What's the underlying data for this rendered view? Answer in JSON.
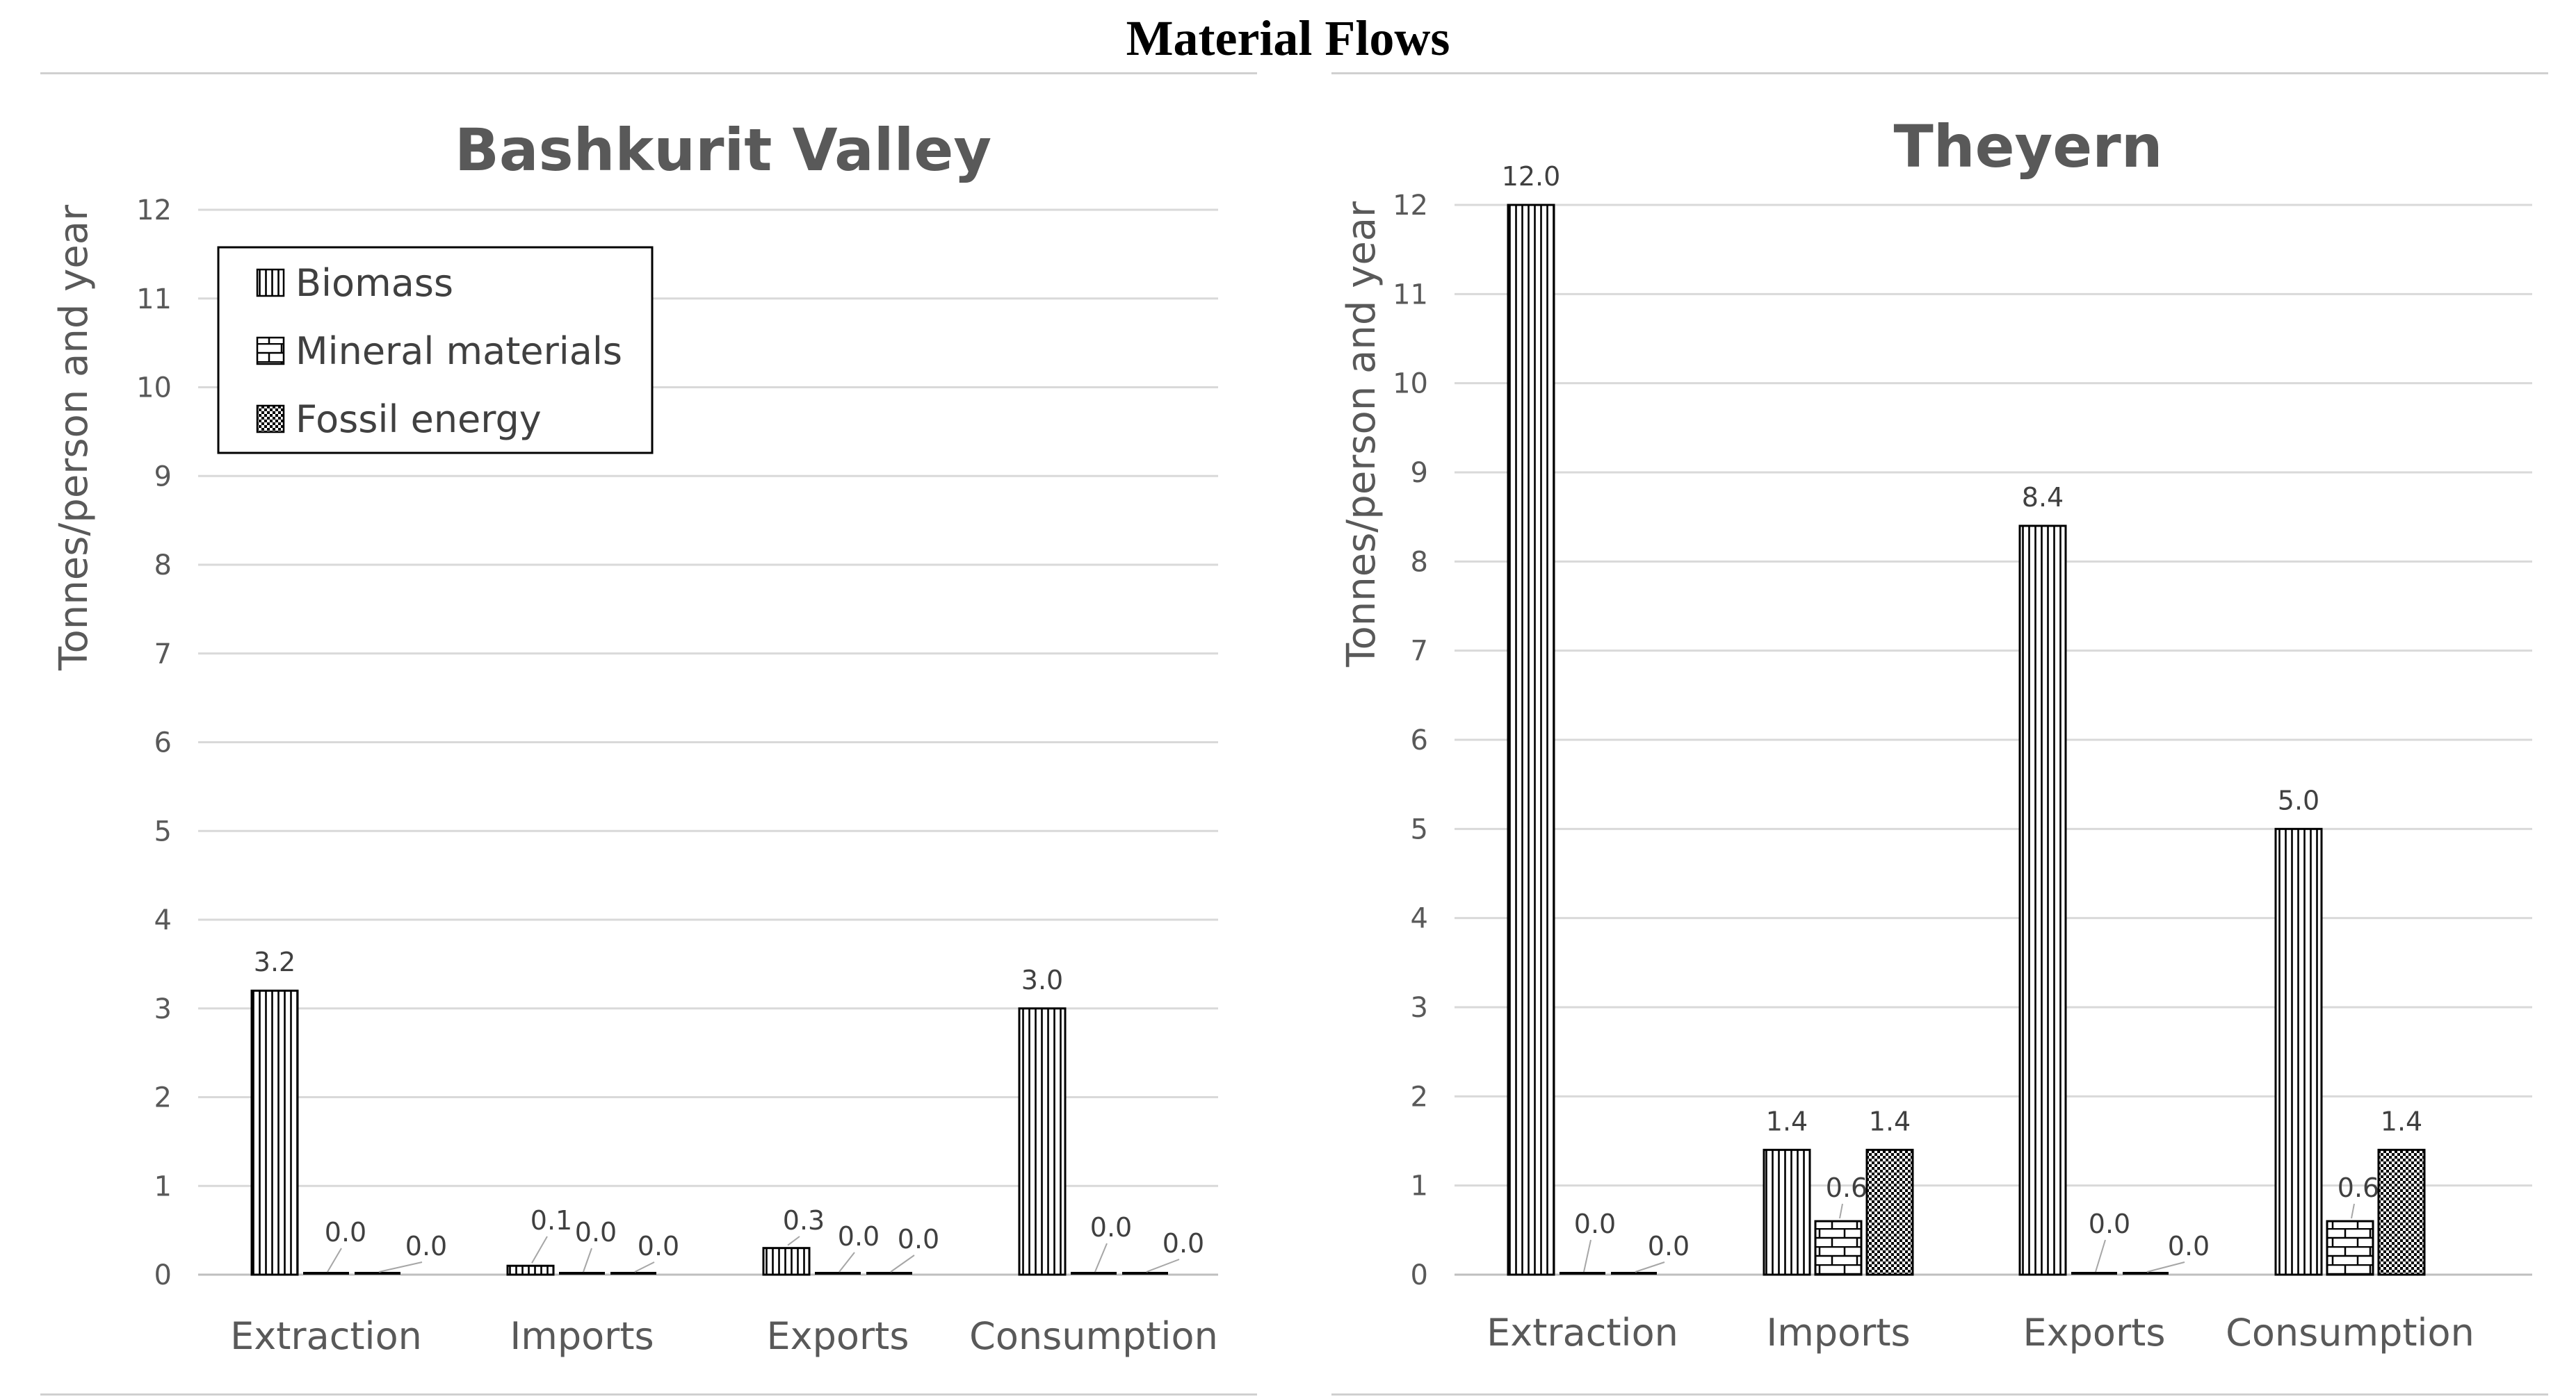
{
  "figure_title": "Material Flows",
  "chart_data": [
    {
      "type": "bar",
      "title": "Bashkurit Valley",
      "ylabel": "Tonnes/person and year",
      "xlabel": "",
      "ylim": [
        0,
        12
      ],
      "yticks": [
        0,
        1,
        2,
        3,
        4,
        5,
        6,
        7,
        8,
        9,
        10,
        11,
        12
      ],
      "grid": true,
      "legend": "top-left",
      "categories": [
        "Extraction",
        "Imports",
        "Exports",
        "Consumption"
      ],
      "series": [
        {
          "name": "Biomass",
          "pattern": "vertical-lines",
          "values": [
            3.2,
            0.1,
            0.3,
            3.0
          ],
          "labels": [
            "3.2",
            "0.1",
            "0.3",
            "3.0"
          ]
        },
        {
          "name": "Mineral materials",
          "pattern": "bricks",
          "values": [
            0.0,
            0.0,
            0.0,
            0.0
          ],
          "labels": [
            "0.0",
            "0.0",
            "0.0",
            "0.0"
          ]
        },
        {
          "name": "Fossil energy",
          "pattern": "dots",
          "values": [
            0.0,
            0.0,
            0.0,
            0.0
          ],
          "labels": [
            "0.0",
            "0.0",
            "0.0",
            "0.0"
          ]
        }
      ]
    },
    {
      "type": "bar",
      "title": "Theyern",
      "ylabel": "Tonnes/person and year",
      "xlabel": "",
      "ylim": [
        0,
        12
      ],
      "yticks": [
        0,
        1,
        2,
        3,
        4,
        5,
        6,
        7,
        8,
        9,
        10,
        11,
        12
      ],
      "grid": true,
      "legend": "none",
      "categories": [
        "Extraction",
        "Imports",
        "Exports",
        "Consumption"
      ],
      "series": [
        {
          "name": "Biomass",
          "pattern": "vertical-lines",
          "values": [
            12.0,
            1.4,
            8.4,
            5.0
          ],
          "labels": [
            "12.0",
            "1.4",
            "8.4",
            "5.0"
          ]
        },
        {
          "name": "Mineral materials",
          "pattern": "bricks",
          "values": [
            0.0,
            0.6,
            0.0,
            0.6
          ],
          "labels": [
            "0.0",
            "0.6",
            "0.0",
            "0.6"
          ]
        },
        {
          "name": "Fossil energy",
          "pattern": "dots",
          "values": [
            0.0,
            1.4,
            0.0,
            1.4
          ],
          "labels": [
            "0.0",
            "1.4",
            "0.0",
            "1.4"
          ]
        }
      ]
    }
  ]
}
